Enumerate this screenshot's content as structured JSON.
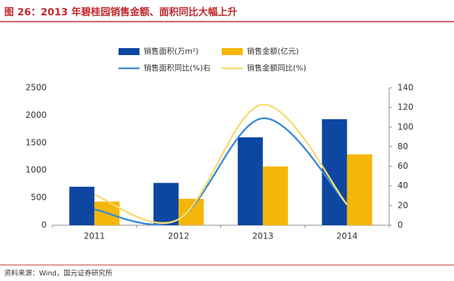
{
  "chart_data": {
    "type": "combo",
    "title": "图 26：2013 年碧桂园销售金额、面积同比大幅上升",
    "source": "资料来源：Wind，国元证券研究所",
    "categories": [
      "2011",
      "2012",
      "2013",
      "2014"
    ],
    "series": [
      {
        "name": "销售面积(万m²)",
        "type": "bar",
        "color": "#0d47a1",
        "values": [
          700,
          770,
          1600,
          1930
        ]
      },
      {
        "name": "销售金额(亿元)",
        "type": "bar",
        "color": "#f5b60a",
        "values": [
          430,
          480,
          1070,
          1290
        ]
      },
      {
        "name": "销售面积同比(%)右",
        "type": "line",
        "axis": "y2",
        "color": "#3a8ad9",
        "values": [
          16,
          6,
          109,
          21
        ]
      },
      {
        "name": "销售金额同比(%)",
        "type": "line",
        "axis": "y2",
        "color": "#f7dc6f",
        "values": [
          31,
          6,
          123,
          21
        ]
      }
    ],
    "ylim": [
      0,
      2500
    ],
    "yticks": [
      0,
      500,
      1000,
      1500,
      2000,
      2500
    ],
    "y2lim": [
      0,
      140
    ],
    "y2ticks": [
      0,
      20,
      40,
      60,
      80,
      100,
      120,
      140
    ]
  }
}
